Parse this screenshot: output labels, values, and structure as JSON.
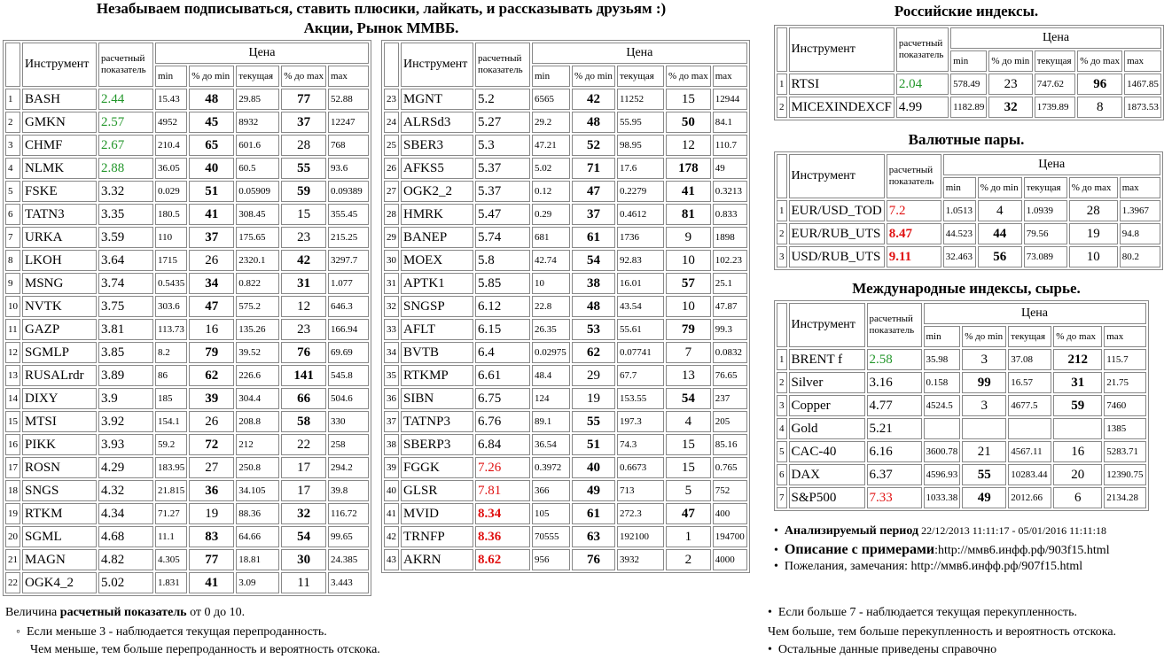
{
  "header": {
    "line1": "Незабываем подписываться, ставить плюсики, лайкать, и рассказывать друзьям :)",
    "line2": "Акции, Рынок ММВБ."
  },
  "columns": {
    "instrument": "Инструмент",
    "indicator": "расчетный показатель",
    "price": "Цена",
    "min": "min",
    "pct_min": "% до min",
    "current": "текущая",
    "pct_max": "% до max",
    "max": "max"
  },
  "stocks_left": {
    "rows": [
      [
        1,
        "BASH",
        2.44,
        15.43,
        48,
        29.85,
        77,
        52.88
      ],
      [
        2,
        "GMKN",
        2.57,
        4952,
        45,
        8932,
        37,
        12247
      ],
      [
        3,
        "CHMF",
        2.67,
        210.4,
        65,
        601.6,
        28,
        768
      ],
      [
        4,
        "NLMK",
        2.88,
        36.05,
        40,
        60.5,
        55,
        93.6
      ],
      [
        5,
        "FSKE",
        3.32,
        0.029,
        51,
        0.05909,
        59,
        0.09389
      ],
      [
        6,
        "TATN3",
        3.35,
        180.5,
        41,
        308.45,
        15,
        355.45
      ],
      [
        7,
        "URKA",
        3.59,
        110,
        37,
        175.65,
        23,
        215.25
      ],
      [
        8,
        "LKOH",
        3.64,
        1715,
        26,
        2320.1,
        42,
        3297.7
      ],
      [
        9,
        "MSNG",
        3.74,
        0.5435,
        34,
        0.822,
        31,
        1.077
      ],
      [
        10,
        "NVTK",
        3.75,
        303.6,
        47,
        575.2,
        12,
        646.3
      ],
      [
        11,
        "GAZP",
        3.81,
        113.73,
        16,
        135.26,
        23,
        166.94
      ],
      [
        12,
        "SGMLP",
        3.85,
        8.2,
        79,
        39.52,
        76,
        69.69
      ],
      [
        13,
        "RUSALrdr",
        3.89,
        86,
        62,
        226.6,
        141,
        545.8
      ],
      [
        14,
        "DIXY",
        3.9,
        185,
        39,
        304.4,
        66,
        504.6
      ],
      [
        15,
        "MTSI",
        3.92,
        154.1,
        26,
        208.8,
        58,
        330
      ],
      [
        16,
        "PIKK",
        3.93,
        59.2,
        72,
        212,
        22,
        258
      ],
      [
        17,
        "ROSN",
        4.29,
        183.95,
        27,
        250.8,
        17,
        294.2
      ],
      [
        18,
        "SNGS",
        4.32,
        21.815,
        36,
        34.105,
        17,
        39.8
      ],
      [
        19,
        "RTKM",
        4.34,
        71.27,
        19,
        88.36,
        32,
        116.72
      ],
      [
        20,
        "SGML",
        4.68,
        11.1,
        83,
        64.66,
        54,
        99.65
      ],
      [
        21,
        "MAGN",
        4.82,
        4.305,
        77,
        18.81,
        30,
        24.385
      ],
      [
        22,
        "OGK4_2",
        5.02,
        1.831,
        41,
        3.09,
        11,
        3.443
      ]
    ]
  },
  "stocks_right": {
    "rows": [
      [
        23,
        "MGNT",
        5.2,
        6565,
        42,
        11252,
        15,
        12944
      ],
      [
        24,
        "ALRSd3",
        5.27,
        29.2,
        48,
        55.95,
        50,
        84.1
      ],
      [
        25,
        "SBER3",
        5.3,
        47.21,
        52,
        98.95,
        12,
        110.7
      ],
      [
        26,
        "AFKS5",
        5.37,
        5.02,
        71,
        17.6,
        178,
        49
      ],
      [
        27,
        "OGK2_2",
        5.37,
        0.12,
        47,
        0.2279,
        41,
        0.3213
      ],
      [
        28,
        "HMRK",
        5.47,
        0.29,
        37,
        0.4612,
        81,
        0.833
      ],
      [
        29,
        "BANEP",
        5.74,
        681,
        61,
        1736,
        9,
        1898
      ],
      [
        30,
        "MOEX",
        5.8,
        42.74,
        54,
        92.83,
        10,
        102.23
      ],
      [
        31,
        "APTK1",
        5.85,
        10,
        38,
        16.01,
        57,
        25.1
      ],
      [
        32,
        "SNGSP",
        6.12,
        22.8,
        48,
        43.54,
        10,
        47.87
      ],
      [
        33,
        "AFLT",
        6.15,
        26.35,
        53,
        55.61,
        79,
        99.3
      ],
      [
        34,
        "BVTB",
        6.4,
        0.02975,
        62,
        0.07741,
        7,
        0.0832
      ],
      [
        35,
        "RTKMP",
        6.61,
        48.4,
        29,
        67.7,
        13,
        76.65
      ],
      [
        36,
        "SIBN",
        6.75,
        124,
        19,
        153.55,
        54,
        237
      ],
      [
        37,
        "TATNP3",
        6.76,
        89.1,
        55,
        197.3,
        4,
        205
      ],
      [
        38,
        "SBERP3",
        6.84,
        36.54,
        51,
        74.3,
        15,
        85.16
      ],
      [
        39,
        "FGGK",
        7.26,
        0.3972,
        40,
        0.6673,
        15,
        0.765
      ],
      [
        40,
        "GLSR",
        7.81,
        366,
        49,
        713,
        5,
        752
      ],
      [
        41,
        "MVID",
        8.34,
        105,
        61,
        272.3,
        47,
        400
      ],
      [
        42,
        "TRNFP",
        8.36,
        70555,
        63,
        192100,
        1,
        194700
      ],
      [
        43,
        "AKRN",
        8.62,
        956,
        76,
        3932,
        2,
        4000
      ]
    ]
  },
  "russian_indices": {
    "title": "Российские индексы.",
    "rows": [
      [
        1,
        "RTSI",
        2.04,
        578.49,
        23,
        747.62,
        96,
        1467.85
      ],
      [
        2,
        "MICEXINDEXCF",
        4.99,
        1182.89,
        32,
        1739.89,
        8,
        1873.53
      ]
    ]
  },
  "currency_pairs": {
    "title": "Валютные пары.",
    "rows": [
      [
        1,
        "EUR/USD_TOD",
        7.2,
        1.0513,
        4,
        1.0939,
        28,
        1.3967
      ],
      [
        2,
        "EUR/RUB_UTS",
        8.47,
        44.523,
        44,
        79.56,
        19,
        94.8
      ],
      [
        3,
        "USD/RUB_UTS",
        9.11,
        32.463,
        56,
        73.089,
        10,
        80.2
      ]
    ]
  },
  "international": {
    "title": "Международные индексы, сырье.",
    "rows": [
      [
        1,
        "BRENT f",
        2.58,
        35.98,
        3,
        37.08,
        212,
        115.7
      ],
      [
        2,
        "Silver",
        3.16,
        0.158,
        99,
        16.57,
        31,
        21.75
      ],
      [
        3,
        "Copper",
        4.77,
        4524.5,
        3,
        4677.5,
        59,
        7460
      ],
      [
        4,
        "Gold",
        5.21,
        null,
        null,
        null,
        null,
        1385
      ],
      [
        5,
        "CAC-40",
        6.16,
        3600.78,
        21,
        4567.11,
        16,
        5283.71
      ],
      [
        6,
        "DAX",
        6.37,
        4596.93,
        55,
        10283.44,
        20,
        12390.75
      ],
      [
        7,
        "S&P500",
        7.33,
        1033.38,
        49,
        2012.66,
        6,
        2134.28
      ]
    ]
  },
  "info": [
    {
      "label": "Анализируемый период",
      "text": " 22/12/2013 11:11:17 - 05/01/2016 11:11:18"
    },
    {
      "label": "Описание с примерами",
      "text": ":http://ммв6.инфф.рф/903f15.html"
    },
    {
      "text": "Пожелания, замечания: http://ммв6.инфф.рф/907f15.html"
    }
  ],
  "notes_left": {
    "prefix": "Величина ",
    "bold": "расчетный показатель",
    "suffix": " от 0 до 10.",
    "item": "Если меньше 3 - наблюдается текущая перепроданность.",
    "line": "Чем меньше, тем больше перепроданность и вероятность отскока."
  },
  "notes_right": {
    "item": "Если больше 7 - наблюдается текущая перекупленность.",
    "line": "Чем больше, тем больше перекупленность и вероятность отскока.",
    "item2": "Остальные данные приведены справочно"
  }
}
